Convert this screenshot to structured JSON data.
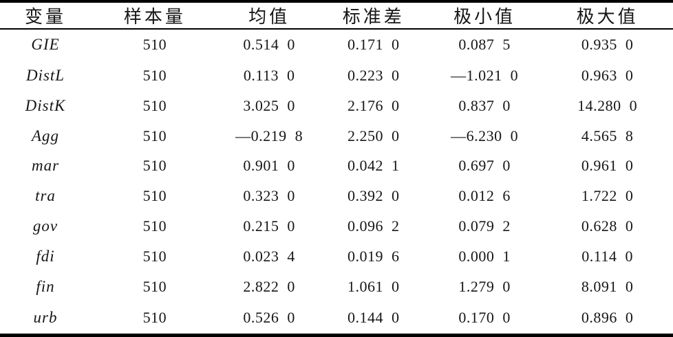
{
  "table": {
    "headers": [
      {
        "label": "变量"
      },
      {
        "label": "样本量"
      },
      {
        "label": "均值"
      },
      {
        "label": "标准差"
      },
      {
        "label": "极小值"
      },
      {
        "label": "极大值"
      }
    ],
    "rows": [
      {
        "variable": "GIE",
        "n": "510",
        "mean": "0.514 0",
        "sd": "0.171 0",
        "min": "0.087 5",
        "max": "0.935 0"
      },
      {
        "variable": "DistL",
        "n": "510",
        "mean": "0.113 0",
        "sd": "0.223 0",
        "min": "—1.021 0",
        "max": "0.963 0"
      },
      {
        "variable": "DistK",
        "n": "510",
        "mean": "3.025 0",
        "sd": "2.176 0",
        "min": "0.837 0",
        "max": "14.280 0"
      },
      {
        "variable": "Agg",
        "n": "510",
        "mean": "—0.219 8",
        "sd": "2.250 0",
        "min": "—6.230 0",
        "max": "4.565 8"
      },
      {
        "variable": "mar",
        "n": "510",
        "mean": "0.901 0",
        "sd": "0.042 1",
        "min": "0.697 0",
        "max": "0.961 0"
      },
      {
        "variable": "tra",
        "n": "510",
        "mean": "0.323 0",
        "sd": "0.392 0",
        "min": "0.012 6",
        "max": "1.722 0"
      },
      {
        "variable": "gov",
        "n": "510",
        "mean": "0.215 0",
        "sd": "0.096 2",
        "min": "0.079 2",
        "max": "0.628 0"
      },
      {
        "variable": "fdi",
        "n": "510",
        "mean": "0.023 4",
        "sd": "0.019 6",
        "min": "0.000 1",
        "max": "0.114 0"
      },
      {
        "variable": "fin",
        "n": "510",
        "mean": "2.822 0",
        "sd": "1.061 0",
        "min": "1.279 0",
        "max": "8.091 0"
      },
      {
        "variable": "urb",
        "n": "510",
        "mean": "0.526 0",
        "sd": "0.144 0",
        "min": "0.170 0",
        "max": "0.896 0"
      }
    ]
  }
}
